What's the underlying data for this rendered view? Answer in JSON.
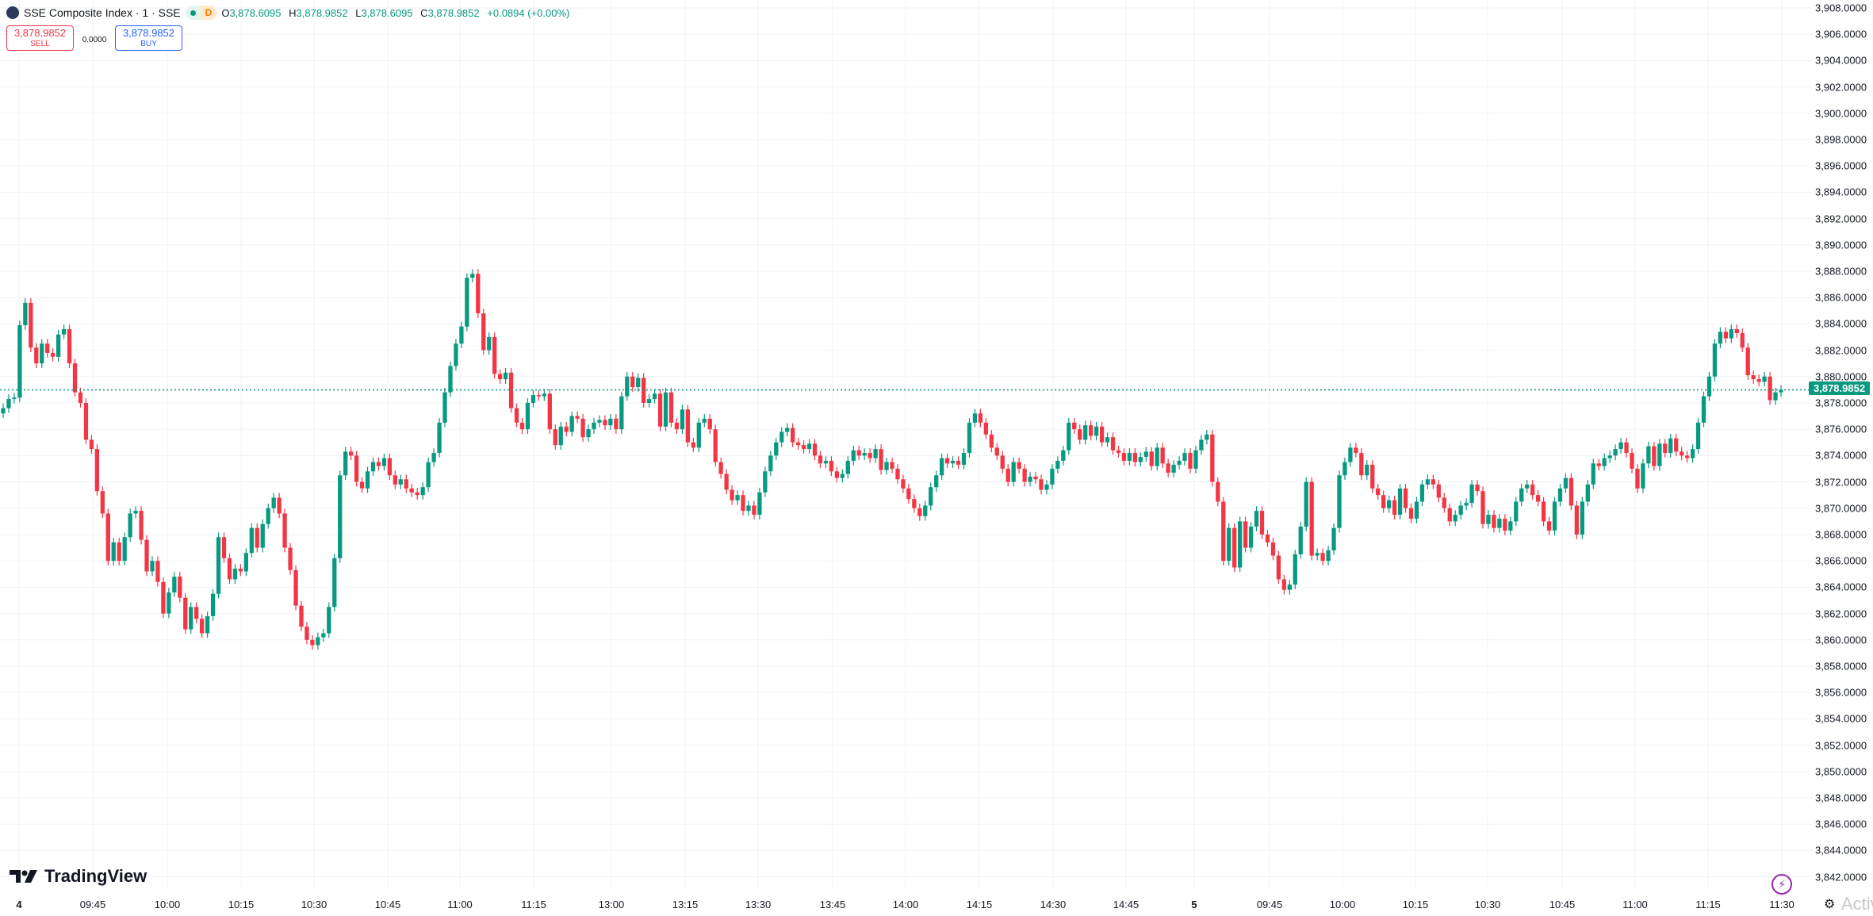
{
  "header": {
    "symbol": "SSE Composite Index · 1 · SSE",
    "market_status_badge": "D",
    "ohlc": {
      "o_label": "O",
      "o": "3,878.6095",
      "h_label": "H",
      "h": "3,878.9852",
      "l_label": "L",
      "l": "3,878.6095",
      "c_label": "C",
      "c": "3,878.9852",
      "change": "+0.0894 (+0.00%)"
    }
  },
  "trade": {
    "sell_price": "3,878.9852",
    "sell_label": "SELL",
    "spread": "0.0000",
    "buy_price": "3,878.9852",
    "buy_label": "BUY"
  },
  "branding": {
    "logo_text": "TradingView",
    "watermark": "Activ"
  },
  "colors": {
    "up": "#089981",
    "down": "#F23645",
    "price_line": "#089981",
    "grid": "#F0F3FA"
  },
  "last_price_label": "3,878.9852",
  "chart_data": {
    "type": "candlestick",
    "title": "SSE Composite Index · 1 · SSE",
    "interval": "1 minute",
    "ylim": [
      3841,
      3909
    ],
    "last_price": 3878.9852,
    "grid": true,
    "y_ticks": [
      "3,908.0000",
      "3,906.0000",
      "3,904.0000",
      "3,902.0000",
      "3,900.0000",
      "3,898.0000",
      "3,896.0000",
      "3,894.0000",
      "3,892.0000",
      "3,890.0000",
      "3,888.0000",
      "3,886.0000",
      "3,884.0000",
      "3,882.0000",
      "3,880.0000",
      "3,878.0000",
      "3,876.0000",
      "3,874.0000",
      "3,872.0000",
      "3,870.0000",
      "3,868.0000",
      "3,866.0000",
      "3,864.0000",
      "3,862.0000",
      "3,860.0000",
      "3,858.0000",
      "3,856.0000",
      "3,854.0000",
      "3,852.0000",
      "3,850.0000",
      "3,848.0000",
      "3,846.0000",
      "3,844.0000",
      "3,842.0000"
    ],
    "x_ticks": [
      "4",
      "09:45",
      "10:00",
      "10:15",
      "10:30",
      "10:45",
      "11:00",
      "11:15",
      "13:00",
      "13:15",
      "13:30",
      "13:45",
      "14:00",
      "14:15",
      "14:30",
      "14:45",
      "5",
      "09:45",
      "10:00",
      "10:15",
      "10:30",
      "10:45",
      "11:00",
      "11:15",
      "11:30"
    ],
    "first_open": 3877.2,
    "closes": [
      3877.6,
      3878.3,
      3878.4,
      3883.9,
      3885.6,
      3882.2,
      3881.0,
      3882.5,
      3881.8,
      3881.5,
      3883.2,
      3883.6,
      3881.0,
      3878.8,
      3878.0,
      3875.2,
      3874.5,
      3871.3,
      3869.6,
      3866.0,
      3867.4,
      3866.0,
      3867.8,
      3869.6,
      3869.8,
      3867.6,
      3865.2,
      3866.0,
      3864.4,
      3862.0,
      3863.6,
      3864.8,
      3863.2,
      3860.8,
      3862.5,
      3861.6,
      3860.5,
      3861.8,
      3863.5,
      3867.8,
      3866.2,
      3864.6,
      3865.4,
      3865.2,
      3866.6,
      3868.5,
      3867.0,
      3868.8,
      3870.0,
      3870.8,
      3869.6,
      3867.0,
      3865.3,
      3862.6,
      3861.0,
      3860.0,
      3859.6,
      3860.2,
      3860.5,
      3862.5,
      3866.2,
      3872.5,
      3874.3,
      3874.0,
      3872.0,
      3871.5,
      3872.8,
      3873.5,
      3873.2,
      3873.8,
      3872.5,
      3871.8,
      3872.2,
      3871.5,
      3871.2,
      3871.0,
      3871.6,
      3873.5,
      3874.2,
      3876.5,
      3878.8,
      3880.8,
      3882.5,
      3883.8,
      3887.5,
      3887.8,
      3884.8,
      3882.0,
      3883.0,
      3880.2,
      3879.8,
      3880.3,
      3877.6,
      3876.5,
      3876.0,
      3878.0,
      3878.6,
      3878.5,
      3878.7,
      3876.0,
      3874.8,
      3876.2,
      3875.8,
      3877.0,
      3876.8,
      3875.4,
      3876.0,
      3876.5,
      3876.7,
      3876.3,
      3876.8,
      3876.0,
      3878.5,
      3880.0,
      3879.2,
      3879.9,
      3878.0,
      3878.3,
      3878.7,
      3876.2,
      3878.8,
      3876.5,
      3876.0,
      3877.5,
      3875.0,
      3874.6,
      3876.5,
      3876.8,
      3876.0,
      3873.5,
      3872.6,
      3871.4,
      3870.6,
      3871.0,
      3869.8,
      3870.2,
      3869.5,
      3871.2,
      3872.8,
      3874.0,
      3875.0,
      3875.8,
      3876.1,
      3875.0,
      3874.8,
      3874.5,
      3874.9,
      3874.0,
      3873.4,
      3873.6,
      3872.8,
      3872.3,
      3872.6,
      3873.6,
      3874.4,
      3874.0,
      3874.2,
      3873.8,
      3874.5,
      3872.9,
      3873.5,
      3873.0,
      3872.2,
      3871.5,
      3870.7,
      3870.0,
      3869.4,
      3870.2,
      3871.6,
      3872.5,
      3873.8,
      3873.4,
      3873.6,
      3873.3,
      3874.2,
      3876.5,
      3877.2,
      3876.5,
      3875.6,
      3874.6,
      3874.0,
      3873.0,
      3872.0,
      3873.5,
      3873.0,
      3872.0,
      3872.4,
      3872.2,
      3871.4,
      3871.8,
      3873.0,
      3873.6,
      3874.4,
      3876.5,
      3876.0,
      3875.2,
      3876.3,
      3875.5,
      3876.2,
      3875.0,
      3875.4,
      3874.4,
      3874.2,
      3873.6,
      3874.2,
      3873.5,
      3873.9,
      3874.3,
      3873.2,
      3874.6,
      3873.4,
      3872.7,
      3873.3,
      3873.6,
      3874.2,
      3873.0,
      3874.4,
      3875.2,
      3875.6,
      3872.0,
      3870.5,
      3866.0,
      3868.5,
      3865.5,
      3869.0,
      3867.0,
      3868.6,
      3869.8,
      3868.0,
      3867.4,
      3866.4,
      3864.6,
      3863.8,
      3864.2,
      3866.5,
      3868.6,
      3872.0,
      3866.4,
      3866.6,
      3866.0,
      3866.8,
      3868.5,
      3872.5,
      3873.5,
      3874.6,
      3874.2,
      3872.5,
      3873.3,
      3871.5,
      3871.0,
      3870.0,
      3870.6,
      3869.5,
      3871.5,
      3870.0,
      3869.2,
      3870.5,
      3871.8,
      3872.2,
      3871.8,
      3870.8,
      3870.0,
      3869.0,
      3869.5,
      3870.2,
      3870.4,
      3871.8,
      3871.3,
      3868.8,
      3869.5,
      3868.5,
      3869.2,
      3868.3,
      3869.0,
      3870.5,
      3871.5,
      3871.8,
      3871.0,
      3870.5,
      3869.0,
      3868.3,
      3870.5,
      3871.5,
      3872.3,
      3870.2,
      3868.0,
      3870.5,
      3871.8,
      3873.4,
      3873.2,
      3873.8,
      3874.0,
      3874.5,
      3875.0,
      3874.2,
      3873.0,
      3871.5,
      3873.4,
      3874.7,
      3873.2,
      3874.9,
      3874.2,
      3875.3,
      3874.3,
      3874.0,
      3873.8,
      3874.5,
      3876.5,
      3878.5,
      3880.0,
      3882.5,
      3883.4,
      3882.9,
      3883.6,
      3883.3,
      3882.2,
      3880.1,
      3879.8,
      3879.6,
      3880.0,
      3878.2,
      3878.8,
      3878.9852
    ]
  }
}
